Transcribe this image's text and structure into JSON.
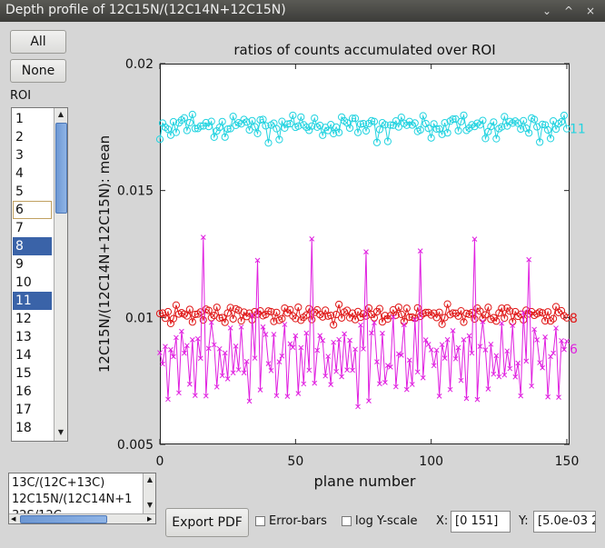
{
  "window": {
    "title": "Depth profile of 12C15N/(12C14N+12C15N)"
  },
  "window_controls": {
    "minimize": "⌄",
    "maximize": "^",
    "close": "×"
  },
  "buttons": {
    "all": "All",
    "none": "None",
    "export": "Export PDF"
  },
  "roi": {
    "label": "ROI",
    "items": [
      "1",
      "2",
      "3",
      "4",
      "5",
      "6",
      "7",
      "8",
      "9",
      "10",
      "11",
      "12",
      "13",
      "14",
      "15",
      "16",
      "17",
      "18"
    ],
    "selected": [
      "8",
      "11"
    ],
    "focused": "6"
  },
  "ratio_list": {
    "items": [
      "13C/(12C+13C)",
      "12C15N/(12C14N+1",
      "32S/12C"
    ]
  },
  "options": {
    "error_bars": "Error-bars",
    "log_y": "log Y-scale",
    "x_label": "X:",
    "x_value": "[0 151]",
    "y_label": "Y:",
    "y_value": "[5.0e-03 2"
  },
  "chart_data": {
    "type": "line",
    "title": "ratios of counts accumulated over ROI",
    "xlabel": "plane number",
    "ylabel": "12C15N/(12C14N+12C15N): mean",
    "xlim": [
      0,
      151
    ],
    "ylim": [
      0.005,
      0.02
    ],
    "x_ticks": [
      "0",
      "50",
      "100",
      "150"
    ],
    "y_ticks": [
      "0.005",
      "0.01",
      "0.015",
      "0.02"
    ],
    "grid": false,
    "series": [
      {
        "name": "11",
        "color": "#22d3e0",
        "marker": "circle",
        "mean": 0.0175,
        "amplitude": 0.0004,
        "values_sample": [
          0.0169,
          0.0174,
          0.0175,
          0.0176,
          0.0172,
          0.0177,
          0.0175,
          0.0178,
          0.0176,
          0.0177,
          0.0174,
          0.0176,
          0.0178,
          0.0175,
          0.0177,
          0.0176,
          0.0175,
          0.0178,
          0.0176,
          0.0175
        ]
      },
      {
        "name": "8",
        "color": "#e01818",
        "marker": "circle",
        "mean": 0.0101,
        "amplitude": 0.0003,
        "values_sample": [
          0.0101,
          0.0103,
          0.01,
          0.0102,
          0.0099,
          0.0101,
          0.0104,
          0.01,
          0.0102,
          0.0101,
          0.0099,
          0.0103,
          0.01,
          0.0102,
          0.0101,
          0.0103,
          0.01,
          0.0102,
          0.0101,
          0.01
        ]
      },
      {
        "name": "6",
        "color": "#e020e0",
        "marker": "x",
        "mean": 0.0085,
        "amplitude": 0.0012,
        "values_sample": [
          0.0088,
          0.008,
          0.0093,
          0.0075,
          0.0086,
          0.0079,
          0.0092,
          0.007,
          0.0088,
          0.0083,
          0.0095,
          0.0078,
          0.009,
          0.0072,
          0.0097,
          0.0081,
          0.0124,
          0.0068,
          0.0089,
          0.0094
        ]
      }
    ]
  }
}
